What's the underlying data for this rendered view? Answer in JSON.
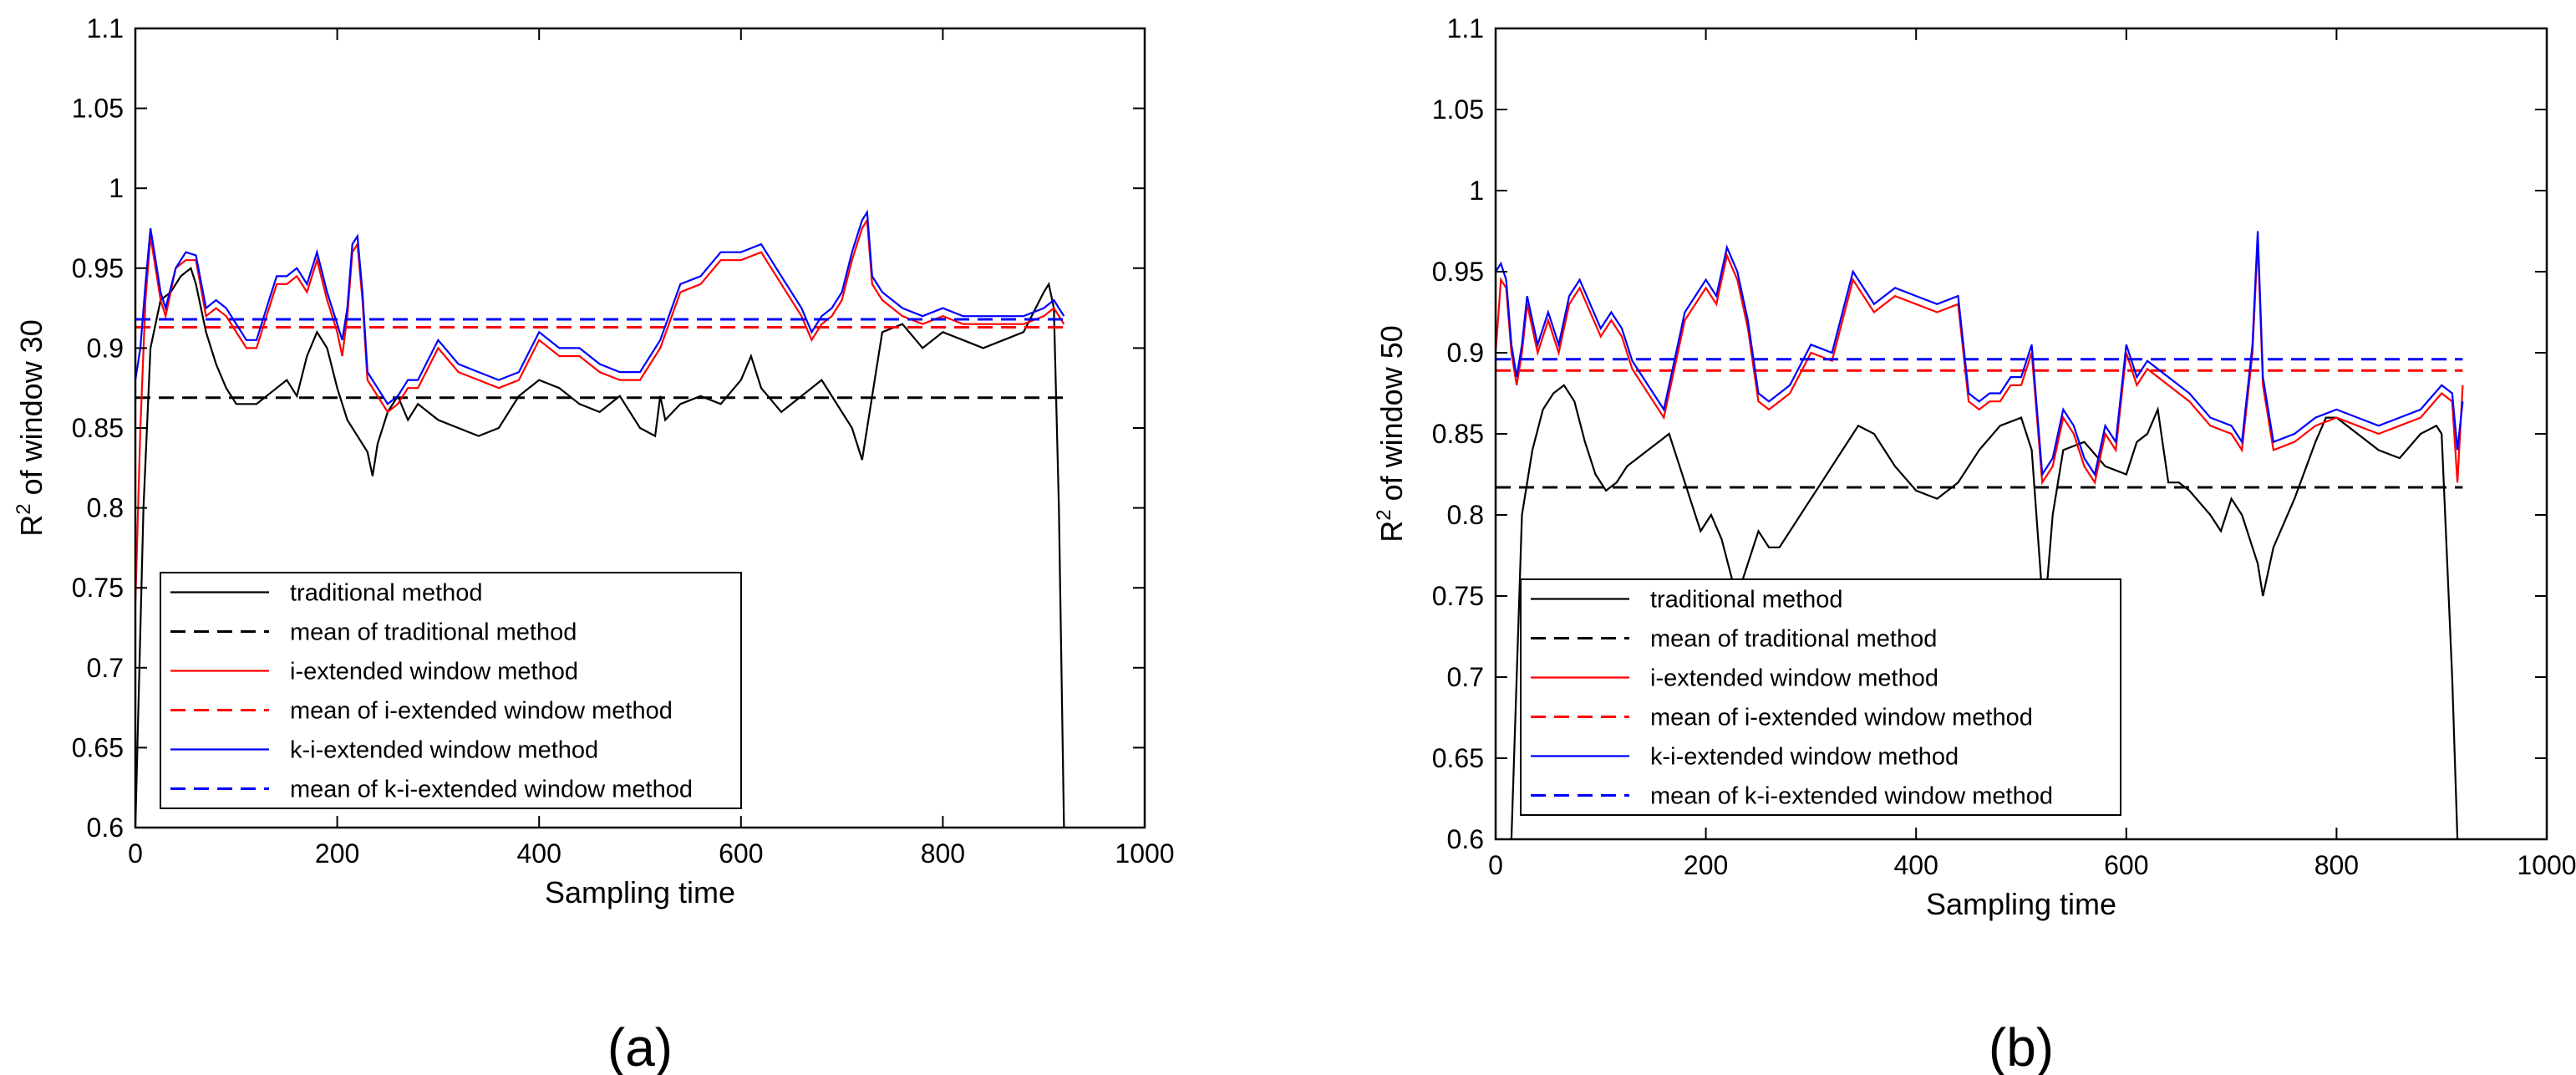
{
  "chart_data": [
    {
      "type": "line",
      "panel_label": "(a)",
      "xlabel": "Sampling time",
      "ylabel": "R",
      "ylabel_sup": "2",
      "ylabel_rest": " of window 30",
      "xlim": [
        0,
        1000
      ],
      "ylim": [
        0.6,
        1.1
      ],
      "xticks": [
        "0",
        "200",
        "400",
        "600",
        "800",
        "1000"
      ],
      "yticks": [
        "0.6",
        "0.65",
        "0.7",
        "0.75",
        "0.8",
        "0.85",
        "0.9",
        "0.95",
        "1",
        "1.05",
        "1.1"
      ],
      "legend_location": "lower-left",
      "series": [
        {
          "name": "traditional method",
          "color": "#000000",
          "dash": "solid",
          "x": [
            0,
            8,
            15,
            25,
            35,
            45,
            55,
            60,
            70,
            80,
            90,
            100,
            120,
            140,
            150,
            160,
            170,
            180,
            190,
            200,
            210,
            220,
            230,
            235,
            240,
            250,
            260,
            270,
            280,
            300,
            320,
            340,
            360,
            380,
            400,
            420,
            440,
            460,
            480,
            500,
            515,
            520,
            525,
            540,
            560,
            580,
            600,
            610,
            620,
            640,
            660,
            680,
            700,
            710,
            720,
            730,
            740,
            760,
            780,
            800,
            820,
            840,
            860,
            880,
            900,
            905,
            910,
            915,
            920
          ],
          "y": [
            0.6,
            0.8,
            0.9,
            0.93,
            0.935,
            0.945,
            0.95,
            0.94,
            0.91,
            0.89,
            0.875,
            0.865,
            0.865,
            0.875,
            0.88,
            0.87,
            0.895,
            0.91,
            0.9,
            0.875,
            0.855,
            0.845,
            0.835,
            0.82,
            0.84,
            0.86,
            0.87,
            0.855,
            0.865,
            0.855,
            0.85,
            0.845,
            0.85,
            0.87,
            0.88,
            0.875,
            0.865,
            0.86,
            0.87,
            0.85,
            0.845,
            0.87,
            0.855,
            0.865,
            0.87,
            0.865,
            0.88,
            0.895,
            0.875,
            0.86,
            0.87,
            0.88,
            0.86,
            0.85,
            0.83,
            0.87,
            0.91,
            0.915,
            0.9,
            0.91,
            0.905,
            0.9,
            0.905,
            0.91,
            0.935,
            0.94,
            0.925,
            0.8,
            0.6
          ]
        },
        {
          "name": "mean of traditional method",
          "color": "#000000",
          "dash": "dashed",
          "x": [
            0,
            920
          ],
          "y": [
            0.869,
            0.869
          ]
        },
        {
          "name": "i-extended window method",
          "color": "#ff0000",
          "dash": "solid",
          "x": [
            0,
            5,
            10,
            15,
            20,
            25,
            30,
            40,
            50,
            60,
            70,
            80,
            90,
            100,
            110,
            120,
            130,
            140,
            150,
            160,
            170,
            180,
            190,
            200,
            205,
            210,
            215,
            220,
            225,
            230,
            240,
            250,
            260,
            270,
            280,
            300,
            320,
            340,
            360,
            380,
            400,
            420,
            440,
            460,
            480,
            500,
            520,
            540,
            560,
            580,
            600,
            620,
            640,
            660,
            670,
            680,
            690,
            700,
            710,
            720,
            725,
            730,
            740,
            760,
            780,
            800,
            820,
            840,
            860,
            880,
            900,
            910,
            920
          ],
          "y": [
            0.74,
            0.85,
            0.93,
            0.97,
            0.95,
            0.93,
            0.92,
            0.95,
            0.955,
            0.955,
            0.92,
            0.925,
            0.92,
            0.91,
            0.9,
            0.9,
            0.92,
            0.94,
            0.94,
            0.945,
            0.935,
            0.955,
            0.93,
            0.91,
            0.895,
            0.92,
            0.96,
            0.965,
            0.93,
            0.88,
            0.87,
            0.86,
            0.865,
            0.875,
            0.875,
            0.9,
            0.885,
            0.88,
            0.875,
            0.88,
            0.905,
            0.895,
            0.895,
            0.885,
            0.88,
            0.88,
            0.9,
            0.935,
            0.94,
            0.955,
            0.955,
            0.96,
            0.94,
            0.92,
            0.905,
            0.915,
            0.92,
            0.93,
            0.955,
            0.975,
            0.98,
            0.94,
            0.93,
            0.92,
            0.915,
            0.92,
            0.915,
            0.915,
            0.915,
            0.915,
            0.92,
            0.925,
            0.915
          ]
        },
        {
          "name": "mean of i-extended window method",
          "color": "#ff0000",
          "dash": "dashed",
          "x": [
            0,
            920
          ],
          "y": [
            0.913,
            0.913
          ]
        },
        {
          "name": "k-i-extended window method",
          "color": "#0000ff",
          "dash": "solid",
          "x": [
            0,
            5,
            10,
            15,
            20,
            25,
            30,
            40,
            50,
            60,
            70,
            80,
            90,
            100,
            110,
            120,
            130,
            140,
            150,
            160,
            170,
            180,
            190,
            200,
            205,
            210,
            215,
            220,
            225,
            230,
            240,
            250,
            260,
            270,
            280,
            300,
            320,
            340,
            360,
            380,
            400,
            420,
            440,
            460,
            480,
            500,
            520,
            540,
            560,
            580,
            600,
            620,
            640,
            660,
            670,
            680,
            690,
            700,
            710,
            720,
            725,
            730,
            740,
            760,
            780,
            800,
            820,
            840,
            860,
            880,
            900,
            910,
            920
          ],
          "y": [
            0.88,
            0.9,
            0.94,
            0.975,
            0.955,
            0.935,
            0.925,
            0.95,
            0.96,
            0.958,
            0.925,
            0.93,
            0.925,
            0.915,
            0.905,
            0.905,
            0.925,
            0.945,
            0.945,
            0.95,
            0.94,
            0.96,
            0.935,
            0.915,
            0.905,
            0.925,
            0.965,
            0.97,
            0.935,
            0.885,
            0.875,
            0.865,
            0.87,
            0.88,
            0.88,
            0.905,
            0.89,
            0.885,
            0.88,
            0.885,
            0.91,
            0.9,
            0.9,
            0.89,
            0.885,
            0.885,
            0.905,
            0.94,
            0.945,
            0.96,
            0.96,
            0.965,
            0.945,
            0.925,
            0.91,
            0.92,
            0.925,
            0.935,
            0.96,
            0.98,
            0.985,
            0.945,
            0.935,
            0.925,
            0.92,
            0.925,
            0.92,
            0.92,
            0.92,
            0.92,
            0.925,
            0.93,
            0.92
          ]
        },
        {
          "name": "mean of k-i-extended window method",
          "color": "#0000ff",
          "dash": "dashed",
          "x": [
            0,
            920
          ],
          "y": [
            0.918,
            0.918
          ]
        }
      ]
    },
    {
      "type": "line",
      "panel_label": "(b)",
      "xlabel": "Sampling time",
      "ylabel": "R",
      "ylabel_sup": "2",
      "ylabel_rest": " of window 50",
      "xlim": [
        0,
        1000
      ],
      "ylim": [
        0.6,
        1.1
      ],
      "xticks": [
        "0",
        "200",
        "400",
        "600",
        "800",
        "1000"
      ],
      "yticks": [
        "0.6",
        "0.65",
        "0.7",
        "0.75",
        "0.8",
        "0.85",
        "0.9",
        "0.95",
        "1",
        "1.05",
        "1.1"
      ],
      "legend_location": "lower-left",
      "series": [
        {
          "name": "traditional method",
          "color": "#000000",
          "dash": "solid",
          "x": [
            15,
            25,
            35,
            45,
            55,
            65,
            75,
            85,
            95,
            105,
            115,
            125,
            135,
            145,
            155,
            165,
            175,
            185,
            195,
            205,
            215,
            225,
            230,
            240,
            250,
            260,
            270,
            290,
            310,
            330,
            345,
            360,
            380,
            400,
            420,
            440,
            460,
            480,
            500,
            510,
            520,
            525,
            530,
            540,
            560,
            580,
            600,
            610,
            620,
            630,
            640,
            650,
            660,
            680,
            690,
            700,
            710,
            720,
            725,
            730,
            740,
            760,
            780,
            790,
            800,
            820,
            840,
            860,
            880,
            895,
            900,
            910,
            915
          ],
          "y": [
            0.6,
            0.8,
            0.84,
            0.865,
            0.875,
            0.88,
            0.87,
            0.845,
            0.825,
            0.815,
            0.82,
            0.83,
            0.835,
            0.84,
            0.845,
            0.85,
            0.83,
            0.81,
            0.79,
            0.8,
            0.785,
            0.76,
            0.75,
            0.77,
            0.79,
            0.78,
            0.78,
            0.8,
            0.82,
            0.84,
            0.855,
            0.85,
            0.83,
            0.815,
            0.81,
            0.82,
            0.84,
            0.855,
            0.86,
            0.84,
            0.75,
            0.76,
            0.8,
            0.84,
            0.845,
            0.83,
            0.825,
            0.845,
            0.85,
            0.865,
            0.82,
            0.82,
            0.815,
            0.8,
            0.79,
            0.81,
            0.8,
            0.78,
            0.77,
            0.75,
            0.78,
            0.81,
            0.845,
            0.86,
            0.86,
            0.85,
            0.84,
            0.835,
            0.85,
            0.855,
            0.85,
            0.7,
            0.6
          ]
        },
        {
          "name": "mean of traditional method",
          "color": "#000000",
          "dash": "dashed",
          "x": [
            0,
            920
          ],
          "y": [
            0.817,
            0.817
          ]
        },
        {
          "name": "i-extended window method",
          "color": "#ff0000",
          "dash": "solid",
          "x": [
            0,
            5,
            10,
            15,
            20,
            25,
            30,
            40,
            50,
            60,
            70,
            80,
            90,
            100,
            110,
            120,
            130,
            140,
            150,
            160,
            170,
            180,
            190,
            200,
            210,
            220,
            230,
            240,
            250,
            260,
            270,
            280,
            300,
            320,
            340,
            360,
            380,
            400,
            420,
            440,
            450,
            460,
            470,
            480,
            490,
            500,
            510,
            520,
            530,
            540,
            550,
            560,
            570,
            580,
            590,
            600,
            610,
            620,
            640,
            660,
            680,
            700,
            710,
            720,
            725,
            730,
            740,
            760,
            780,
            800,
            820,
            840,
            860,
            880,
            900,
            910,
            915,
            920
          ],
          "y": [
            0.9,
            0.945,
            0.94,
            0.9,
            0.88,
            0.9,
            0.93,
            0.9,
            0.92,
            0.9,
            0.93,
            0.94,
            0.925,
            0.91,
            0.92,
            0.91,
            0.89,
            0.88,
            0.87,
            0.86,
            0.89,
            0.92,
            0.93,
            0.94,
            0.93,
            0.96,
            0.945,
            0.915,
            0.87,
            0.865,
            0.87,
            0.875,
            0.9,
            0.895,
            0.945,
            0.925,
            0.935,
            0.93,
            0.925,
            0.93,
            0.87,
            0.865,
            0.87,
            0.87,
            0.88,
            0.88,
            0.9,
            0.82,
            0.83,
            0.86,
            0.85,
            0.83,
            0.82,
            0.85,
            0.84,
            0.9,
            0.88,
            0.89,
            0.88,
            0.87,
            0.855,
            0.85,
            0.84,
            0.9,
            0.97,
            0.88,
            0.84,
            0.845,
            0.855,
            0.86,
            0.855,
            0.85,
            0.855,
            0.86,
            0.875,
            0.87,
            0.82,
            0.88
          ]
        },
        {
          "name": "mean of i-extended window method",
          "color": "#ff0000",
          "dash": "dashed",
          "x": [
            0,
            920
          ],
          "y": [
            0.889,
            0.889
          ]
        },
        {
          "name": "k-i-extended window method",
          "color": "#0000ff",
          "dash": "solid",
          "x": [
            0,
            5,
            10,
            15,
            20,
            25,
            30,
            40,
            50,
            60,
            70,
            80,
            90,
            100,
            110,
            120,
            130,
            140,
            150,
            160,
            170,
            180,
            190,
            200,
            210,
            220,
            230,
            240,
            250,
            260,
            270,
            280,
            300,
            320,
            340,
            360,
            380,
            400,
            420,
            440,
            450,
            460,
            470,
            480,
            490,
            500,
            510,
            520,
            530,
            540,
            550,
            560,
            570,
            580,
            590,
            600,
            610,
            620,
            640,
            660,
            680,
            700,
            710,
            720,
            725,
            730,
            740,
            760,
            780,
            800,
            820,
            840,
            860,
            880,
            900,
            910,
            915,
            920
          ],
          "y": [
            0.95,
            0.955,
            0.945,
            0.905,
            0.885,
            0.905,
            0.935,
            0.905,
            0.925,
            0.905,
            0.935,
            0.945,
            0.93,
            0.915,
            0.925,
            0.915,
            0.895,
            0.885,
            0.875,
            0.865,
            0.895,
            0.925,
            0.935,
            0.945,
            0.935,
            0.965,
            0.95,
            0.92,
            0.875,
            0.87,
            0.875,
            0.88,
            0.905,
            0.9,
            0.95,
            0.93,
            0.94,
            0.935,
            0.93,
            0.935,
            0.875,
            0.87,
            0.875,
            0.875,
            0.885,
            0.885,
            0.905,
            0.825,
            0.835,
            0.865,
            0.855,
            0.835,
            0.825,
            0.855,
            0.845,
            0.905,
            0.885,
            0.895,
            0.885,
            0.875,
            0.86,
            0.855,
            0.845,
            0.905,
            0.975,
            0.885,
            0.845,
            0.85,
            0.86,
            0.865,
            0.86,
            0.855,
            0.86,
            0.865,
            0.88,
            0.875,
            0.84,
            0.87
          ]
        },
        {
          "name": "mean of k-i-extended window method",
          "color": "#0000ff",
          "dash": "dashed",
          "x": [
            0,
            920
          ],
          "y": [
            0.896,
            0.896
          ]
        }
      ]
    }
  ]
}
